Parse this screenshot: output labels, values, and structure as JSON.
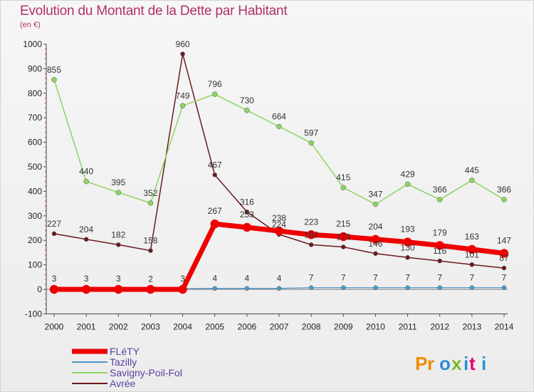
{
  "header": {
    "title": "Evolution du Montant de la Dette par Habitant",
    "subtitle": "(en €)"
  },
  "logo": {
    "text": "Proxiti"
  },
  "chart_data": {
    "type": "line",
    "title": "Evolution du Montant de la Dette par Habitant",
    "subtitle": "(en €)",
    "xlabel": "",
    "ylabel": "",
    "ylim": [
      -100,
      1000
    ],
    "yticks": [
      -100,
      0,
      100,
      200,
      300,
      400,
      500,
      600,
      700,
      800,
      900,
      1000
    ],
    "x": [
      "2000",
      "2001",
      "2002",
      "2003",
      "2004",
      "2005",
      "2006",
      "2007",
      "2008",
      "2009",
      "2010",
      "2011",
      "2012",
      "2013",
      "2014"
    ],
    "grid": false,
    "legend": "bottom-left",
    "series": [
      {
        "name": "Avrée",
        "color": "#6b1a1f",
        "width": 1.5,
        "marker": 3,
        "values": [
          227,
          204,
          182,
          158,
          960,
          467,
          316,
          224,
          182,
          173,
          146,
          130,
          116,
          101,
          87
        ]
      },
      {
        "name": "Savigny-Poil-Fol",
        "color": "#8fd461",
        "width": 1.5,
        "marker": 3.5,
        "values": [
          855,
          440,
          395,
          352,
          749,
          796,
          730,
          664,
          597,
          415,
          347,
          429,
          366,
          445,
          366
        ]
      },
      {
        "name": "Tazilly",
        "color": "#4f97c9",
        "width": 1.2,
        "marker": 3,
        "values": [
          3,
          3,
          3,
          2,
          3,
          4,
          4,
          4,
          7,
          7,
          7,
          7,
          7,
          7,
          7
        ]
      },
      {
        "name": "FLéTY",
        "color": "#ee0000",
        "width": 7,
        "marker": 6,
        "values": [
          0,
          0,
          0,
          0,
          0,
          267,
          253,
          238,
          223,
          215,
          204,
          193,
          179,
          163,
          147
        ]
      }
    ],
    "data_labels": [
      {
        "series": "Savigny-Poil-Fol",
        "values": [
          855,
          440,
          395,
          352,
          749,
          796,
          730,
          664,
          597,
          415,
          347,
          429,
          366,
          445,
          366
        ]
      },
      {
        "series": "Avrée",
        "values": [
          227,
          204,
          182,
          158,
          960,
          467,
          316,
          224,
          182,
          173,
          146,
          130,
          116,
          101,
          87
        ]
      },
      {
        "series": "Tazilly",
        "values": [
          3,
          3,
          3,
          2,
          3,
          4,
          4,
          4,
          7,
          7,
          7,
          7,
          7,
          7,
          7
        ]
      },
      {
        "series": "FLéTY",
        "values": [
          null,
          null,
          null,
          null,
          null,
          267,
          253,
          238,
          223,
          215,
          204,
          193,
          179,
          163,
          147
        ]
      }
    ],
    "legend_entries": [
      "FLéTY",
      "Tazilly",
      "Savigny-Poil-Fol",
      "Avrée"
    ]
  }
}
